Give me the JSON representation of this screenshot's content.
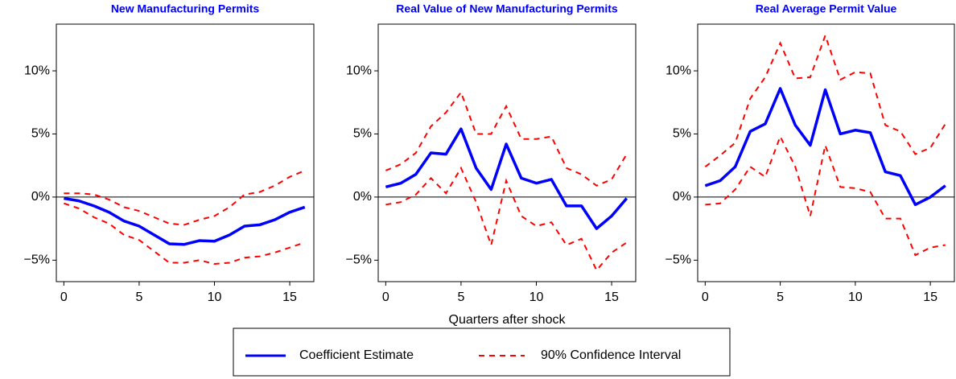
{
  "chart_data": [
    {
      "type": "line",
      "title": "New Manufacturing Permits",
      "x": [
        0,
        1,
        2,
        3,
        4,
        5,
        6,
        7,
        8,
        9,
        10,
        11,
        12,
        13,
        14,
        15,
        16
      ],
      "xlim": [
        -0.5,
        16.6
      ],
      "xticks": [
        0,
        5,
        10,
        15
      ],
      "ylim": [
        -6.7,
        13.7
      ],
      "yticks": [
        {
          "value": -5,
          "label": "−5%"
        },
        {
          "value": 0,
          "label": "0%"
        },
        {
          "value": 5,
          "label": "5%"
        },
        {
          "value": 10,
          "label": "10%"
        }
      ],
      "series": [
        {
          "color": "#0000ff",
          "values": [
            -0.1,
            -0.3,
            -0.7,
            -1.2,
            -1.9,
            -2.3,
            -3.0,
            -3.7,
            -3.75,
            -3.45,
            -3.5,
            -3.0,
            -2.3,
            -2.2,
            -1.8,
            -1.2,
            -0.8
          ]
        }
      ],
      "ci": {
        "color": "#ff0000",
        "upper": [
          0.3,
          0.3,
          0.2,
          -0.2,
          -0.8,
          -1.1,
          -1.6,
          -2.1,
          -2.2,
          -1.8,
          -1.5,
          -0.8,
          0.2,
          0.4,
          0.9,
          1.6,
          2.1
        ],
        "lower": [
          -0.5,
          -0.9,
          -1.6,
          -2.1,
          -3.0,
          -3.4,
          -4.3,
          -5.2,
          -5.2,
          -5.0,
          -5.3,
          -5.2,
          -4.8,
          -4.7,
          -4.4,
          -4.0,
          -3.6
        ]
      }
    },
    {
      "type": "line",
      "title": "Real Value of New Manufacturing Permits",
      "xlabel": "Quarters after shock",
      "x": [
        0,
        1,
        2,
        3,
        4,
        5,
        6,
        7,
        8,
        9,
        10,
        11,
        12,
        13,
        14,
        15,
        16
      ],
      "xlim": [
        -0.5,
        16.6
      ],
      "xticks": [
        0,
        5,
        10,
        15
      ],
      "ylim": [
        -6.7,
        13.7
      ],
      "yticks": [
        {
          "value": -5,
          "label": "−5%"
        },
        {
          "value": 0,
          "label": "0%"
        },
        {
          "value": 5,
          "label": "5%"
        },
        {
          "value": 10,
          "label": "10%"
        }
      ],
      "series": [
        {
          "color": "#0000ff",
          "values": [
            0.8,
            1.1,
            1.8,
            3.5,
            3.4,
            5.4,
            2.3,
            0.6,
            4.2,
            1.5,
            1.1,
            1.4,
            -0.7,
            -0.7,
            -2.5,
            -1.5,
            -0.1
          ]
        }
      ],
      "ci": {
        "color": "#ff0000",
        "upper": [
          2.1,
          2.6,
          3.5,
          5.6,
          6.7,
          8.3,
          5.0,
          5.0,
          7.2,
          4.6,
          4.6,
          4.8,
          2.3,
          1.8,
          0.9,
          1.4,
          3.4
        ],
        "lower": [
          -0.6,
          -0.4,
          0.2,
          1.5,
          0.3,
          2.3,
          -0.4,
          -3.8,
          1.3,
          -1.5,
          -2.3,
          -2.0,
          -3.8,
          -3.3,
          -5.8,
          -4.4,
          -3.6
        ]
      }
    },
    {
      "type": "line",
      "title": "Real Average Permit Value",
      "x": [
        0,
        1,
        2,
        3,
        4,
        5,
        6,
        7,
        8,
        9,
        10,
        11,
        12,
        13,
        14,
        15,
        16
      ],
      "xlim": [
        -0.5,
        16.6
      ],
      "xticks": [
        0,
        5,
        10,
        15
      ],
      "ylim": [
        -6.7,
        13.7
      ],
      "yticks": [
        {
          "value": -5,
          "label": "−5%"
        },
        {
          "value": 0,
          "label": "0%"
        },
        {
          "value": 5,
          "label": "5%"
        },
        {
          "value": 10,
          "label": "10%"
        }
      ],
      "series": [
        {
          "color": "#0000ff",
          "values": [
            0.9,
            1.3,
            2.4,
            5.2,
            5.8,
            8.6,
            5.7,
            4.1,
            8.5,
            5.0,
            5.3,
            5.1,
            2.0,
            1.7,
            -0.6,
            0.0,
            0.9
          ]
        }
      ],
      "ci": {
        "color": "#ff0000",
        "upper": [
          2.4,
          3.3,
          4.3,
          7.8,
          9.5,
          12.2,
          9.4,
          9.5,
          12.8,
          9.3,
          9.9,
          9.8,
          5.7,
          5.2,
          3.4,
          3.9,
          5.8
        ],
        "lower": [
          -0.6,
          -0.5,
          0.6,
          2.4,
          1.6,
          4.8,
          2.4,
          -1.5,
          4.1,
          0.8,
          0.7,
          0.4,
          -1.7,
          -1.7,
          -4.6,
          -4.0,
          -3.8
        ]
      }
    }
  ],
  "legend": {
    "entries": [
      {
        "name": "Coefficient Estimate"
      },
      {
        "name": "90% Confidence Interval"
      }
    ]
  }
}
